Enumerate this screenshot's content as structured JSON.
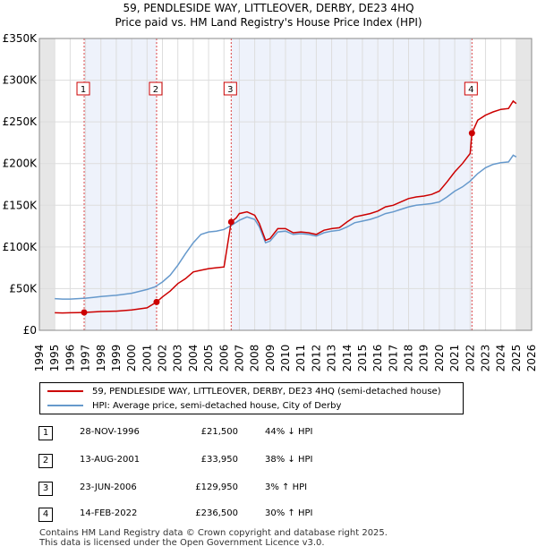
{
  "chart_data": {
    "type": "line",
    "title": "59, PENDLESIDE WAY, LITTLEOVER, DERBY, DE23 4HQ",
    "subtitle": "Price paid vs. HM Land Registry's House Price Index (HPI)",
    "xlabel": "",
    "ylabel": "",
    "xlim": [
      1994,
      2026
    ],
    "ylim": [
      0,
      350000
    ],
    "x_ticks": [
      "1994",
      "1995",
      "1996",
      "1997",
      "1998",
      "1999",
      "2000",
      "2001",
      "2002",
      "2003",
      "2004",
      "2005",
      "2006",
      "2007",
      "2008",
      "2009",
      "2010",
      "2011",
      "2012",
      "2013",
      "2014",
      "2015",
      "2016",
      "2017",
      "2018",
      "2019",
      "2020",
      "2021",
      "2022",
      "2023",
      "2024",
      "2025",
      "2026"
    ],
    "y_ticks": [
      {
        "value": 0,
        "label": "£0"
      },
      {
        "value": 50000,
        "label": "£50K"
      },
      {
        "value": 100000,
        "label": "£100K"
      },
      {
        "value": 150000,
        "label": "£150K"
      },
      {
        "value": 200000,
        "label": "£200K"
      },
      {
        "value": 250000,
        "label": "£250K"
      },
      {
        "value": 300000,
        "label": "£300K"
      },
      {
        "value": 350000,
        "label": "£350K"
      }
    ],
    "grid": true,
    "series": [
      {
        "name": "59, PENDLESIDE WAY, LITTLEOVER, DERBY, DE23 4HQ (semi-detached house)",
        "color": "#cc0000",
        "x": [
          1995.0,
          1995.5,
          1996.0,
          1996.5,
          1996.91,
          1997.5,
          1998.0,
          1999.0,
          2000.0,
          2001.0,
          2001.62,
          2002.0,
          2002.5,
          2003.0,
          2003.5,
          2004.0,
          2004.5,
          2005.0,
          2005.5,
          2006.0,
          2006.47,
          2006.8,
          2007.0,
          2007.5,
          2008.0,
          2008.3,
          2008.7,
          2009.0,
          2009.5,
          2010.0,
          2010.5,
          2011.0,
          2011.5,
          2012.0,
          2012.5,
          2013.0,
          2013.5,
          2014.0,
          2014.5,
          2015.0,
          2015.5,
          2016.0,
          2016.5,
          2017.0,
          2017.5,
          2018.0,
          2018.5,
          2019.0,
          2019.5,
          2020.0,
          2020.5,
          2021.0,
          2021.5,
          2022.0,
          2022.12,
          2022.5,
          2023.0,
          2023.5,
          2024.0,
          2024.5,
          2024.8,
          2025.0
        ],
        "y": [
          21000,
          20800,
          21000,
          21300,
          21500,
          22000,
          22500,
          23000,
          24500,
          27000,
          33950,
          40000,
          47000,
          56000,
          62000,
          70000,
          72000,
          74000,
          75000,
          76000,
          129950,
          135000,
          140000,
          142000,
          138000,
          128000,
          108000,
          110000,
          122000,
          122000,
          117000,
          118000,
          117000,
          115000,
          120000,
          122000,
          123000,
          130000,
          136000,
          138000,
          140000,
          143000,
          148000,
          150000,
          154000,
          158000,
          160000,
          161000,
          163000,
          167000,
          178000,
          190000,
          200000,
          212000,
          236500,
          252000,
          258000,
          262000,
          265000,
          266000,
          275000,
          272000
        ]
      },
      {
        "name": "HPI: Average price, semi-detached house, City of Derby",
        "color": "#6699cc",
        "x": [
          1995.0,
          1995.5,
          1996.0,
          1996.5,
          1997.0,
          1997.5,
          1998.0,
          1999.0,
          2000.0,
          2001.0,
          2001.5,
          2002.0,
          2002.5,
          2003.0,
          2003.5,
          2004.0,
          2004.5,
          2005.0,
          2005.5,
          2006.0,
          2006.5,
          2007.0,
          2007.5,
          2008.0,
          2008.3,
          2008.7,
          2009.0,
          2009.5,
          2010.0,
          2010.5,
          2011.0,
          2011.5,
          2012.0,
          2012.5,
          2013.0,
          2013.5,
          2014.0,
          2014.5,
          2015.0,
          2015.5,
          2016.0,
          2016.5,
          2017.0,
          2017.5,
          2018.0,
          2018.5,
          2019.0,
          2019.5,
          2020.0,
          2020.5,
          2021.0,
          2021.5,
          2022.0,
          2022.5,
          2023.0,
          2023.5,
          2024.0,
          2024.5,
          2024.8,
          2025.0
        ],
        "y": [
          38000,
          37500,
          37500,
          38000,
          38500,
          39500,
          40500,
          42000,
          44500,
          49000,
          52000,
          58000,
          66000,
          78000,
          92000,
          105000,
          115000,
          118000,
          119000,
          121000,
          126000,
          132000,
          136000,
          133000,
          124000,
          105000,
          107000,
          118000,
          119000,
          115000,
          116000,
          115000,
          113000,
          117000,
          119000,
          120000,
          124000,
          129000,
          131000,
          133000,
          136000,
          140000,
          142000,
          145000,
          148000,
          150000,
          151000,
          152000,
          154000,
          160000,
          167000,
          172000,
          179000,
          188000,
          195000,
          199000,
          201000,
          202000,
          210000,
          208000
        ]
      }
    ],
    "sales": [
      {
        "label": "1",
        "x": 1996.91,
        "y": 21500
      },
      {
        "label": "2",
        "x": 2001.62,
        "y": 33950
      },
      {
        "label": "3",
        "x": 2006.47,
        "y": 129950
      },
      {
        "label": "4",
        "x": 2022.12,
        "y": 236500
      }
    ],
    "shaded_ranges": [
      {
        "from": 1994.0,
        "to": 1995.0
      },
      {
        "from": 2025.0,
        "to": 2026.0
      }
    ]
  },
  "transactions": [
    {
      "num": "1",
      "date": "28-NOV-1996",
      "price": "£21,500",
      "hpi": "44% ↓ HPI"
    },
    {
      "num": "2",
      "date": "13-AUG-2001",
      "price": "£33,950",
      "hpi": "38% ↓ HPI"
    },
    {
      "num": "3",
      "date": "23-JUN-2006",
      "price": "£129,950",
      "hpi": "3% ↑ HPI"
    },
    {
      "num": "4",
      "date": "14-FEB-2022",
      "price": "£236,500",
      "hpi": "30% ↑ HPI"
    }
  ],
  "footer": {
    "line1": "Contains HM Land Registry data © Crown copyright and database right 2025.",
    "line2": "This data is licensed under the Open Government Licence v3.0."
  }
}
